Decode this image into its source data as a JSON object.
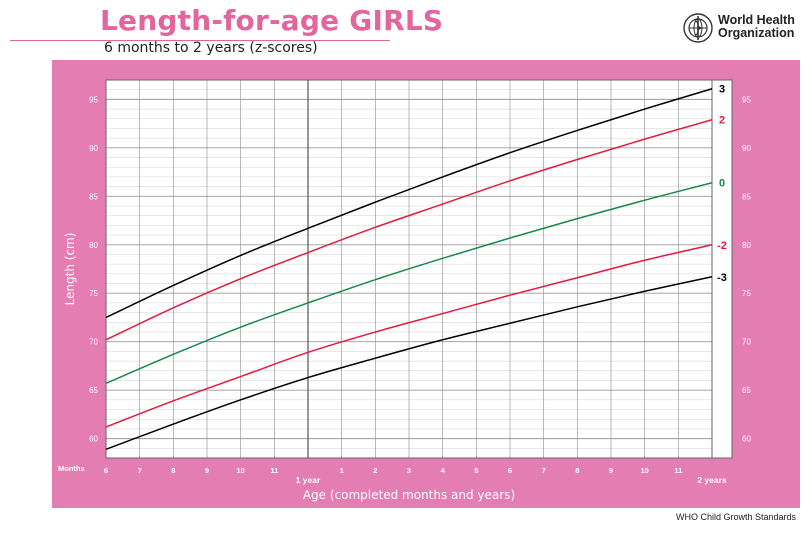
{
  "header": {
    "title": "Length-for-age GIRLS",
    "subtitle": "6 months to 2 years (z-scores)",
    "org_line1": "World Health",
    "org_line2": "Organization"
  },
  "footer": {
    "text": "WHO Child Growth Standards"
  },
  "colors": {
    "brand_pink": "#e2669d",
    "panel_pink": "#e37db2",
    "z3": "#000000",
    "z2": "#e31b3c",
    "z0": "#17894a"
  },
  "chart_data": {
    "type": "line",
    "xlabel": "Age (completed months and years)",
    "ylabel": "Length (cm)",
    "x_prefix_label": "Months",
    "xlim": [
      6,
      24
    ],
    "ylim": [
      58,
      97
    ],
    "y_ticks": [
      60,
      65,
      70,
      75,
      80,
      85,
      90,
      95
    ],
    "x_ticks": [
      {
        "x": 6,
        "label": "6"
      },
      {
        "x": 7,
        "label": "7"
      },
      {
        "x": 8,
        "label": "8"
      },
      {
        "x": 9,
        "label": "9"
      },
      {
        "x": 10,
        "label": "10"
      },
      {
        "x": 11,
        "label": "11"
      },
      {
        "x": 12,
        "label": "1 year"
      },
      {
        "x": 13,
        "label": "1"
      },
      {
        "x": 14,
        "label": "2"
      },
      {
        "x": 15,
        "label": "3"
      },
      {
        "x": 16,
        "label": "4"
      },
      {
        "x": 17,
        "label": "5"
      },
      {
        "x": 18,
        "label": "6"
      },
      {
        "x": 19,
        "label": "7"
      },
      {
        "x": 20,
        "label": "8"
      },
      {
        "x": 21,
        "label": "9"
      },
      {
        "x": 22,
        "label": "10"
      },
      {
        "x": 23,
        "label": "11"
      },
      {
        "x": 24,
        "label": "2 years"
      }
    ],
    "grid": true,
    "series": [
      {
        "name": "3",
        "color": "#000000",
        "x": [
          6,
          8,
          10,
          12,
          14,
          16,
          18,
          20,
          22,
          24
        ],
        "y": [
          72.5,
          75.8,
          78.9,
          81.7,
          84.4,
          87.0,
          89.5,
          91.8,
          94.0,
          96.1
        ]
      },
      {
        "name": "2",
        "color": "#e31b3c",
        "x": [
          6,
          8,
          10,
          12,
          14,
          16,
          18,
          20,
          22,
          24
        ],
        "y": [
          70.2,
          73.5,
          76.5,
          79.2,
          81.8,
          84.2,
          86.6,
          88.8,
          90.9,
          92.9
        ]
      },
      {
        "name": "0",
        "color": "#17894a",
        "x": [
          6,
          8,
          10,
          12,
          14,
          16,
          18,
          20,
          22,
          24
        ],
        "y": [
          65.7,
          68.7,
          71.5,
          74.0,
          76.4,
          78.6,
          80.7,
          82.7,
          84.6,
          86.4
        ]
      },
      {
        "name": "-2",
        "color": "#e31b3c",
        "x": [
          6,
          8,
          10,
          12,
          14,
          16,
          18,
          20,
          22,
          24
        ],
        "y": [
          61.2,
          63.9,
          66.4,
          68.9,
          71.0,
          72.9,
          74.8,
          76.6,
          78.4,
          80.0
        ]
      },
      {
        "name": "-3",
        "color": "#000000",
        "x": [
          6,
          8,
          10,
          12,
          14,
          16,
          18,
          20,
          22,
          24
        ],
        "y": [
          58.9,
          61.5,
          64.0,
          66.3,
          68.3,
          70.2,
          71.9,
          73.6,
          75.2,
          76.7
        ]
      }
    ]
  }
}
